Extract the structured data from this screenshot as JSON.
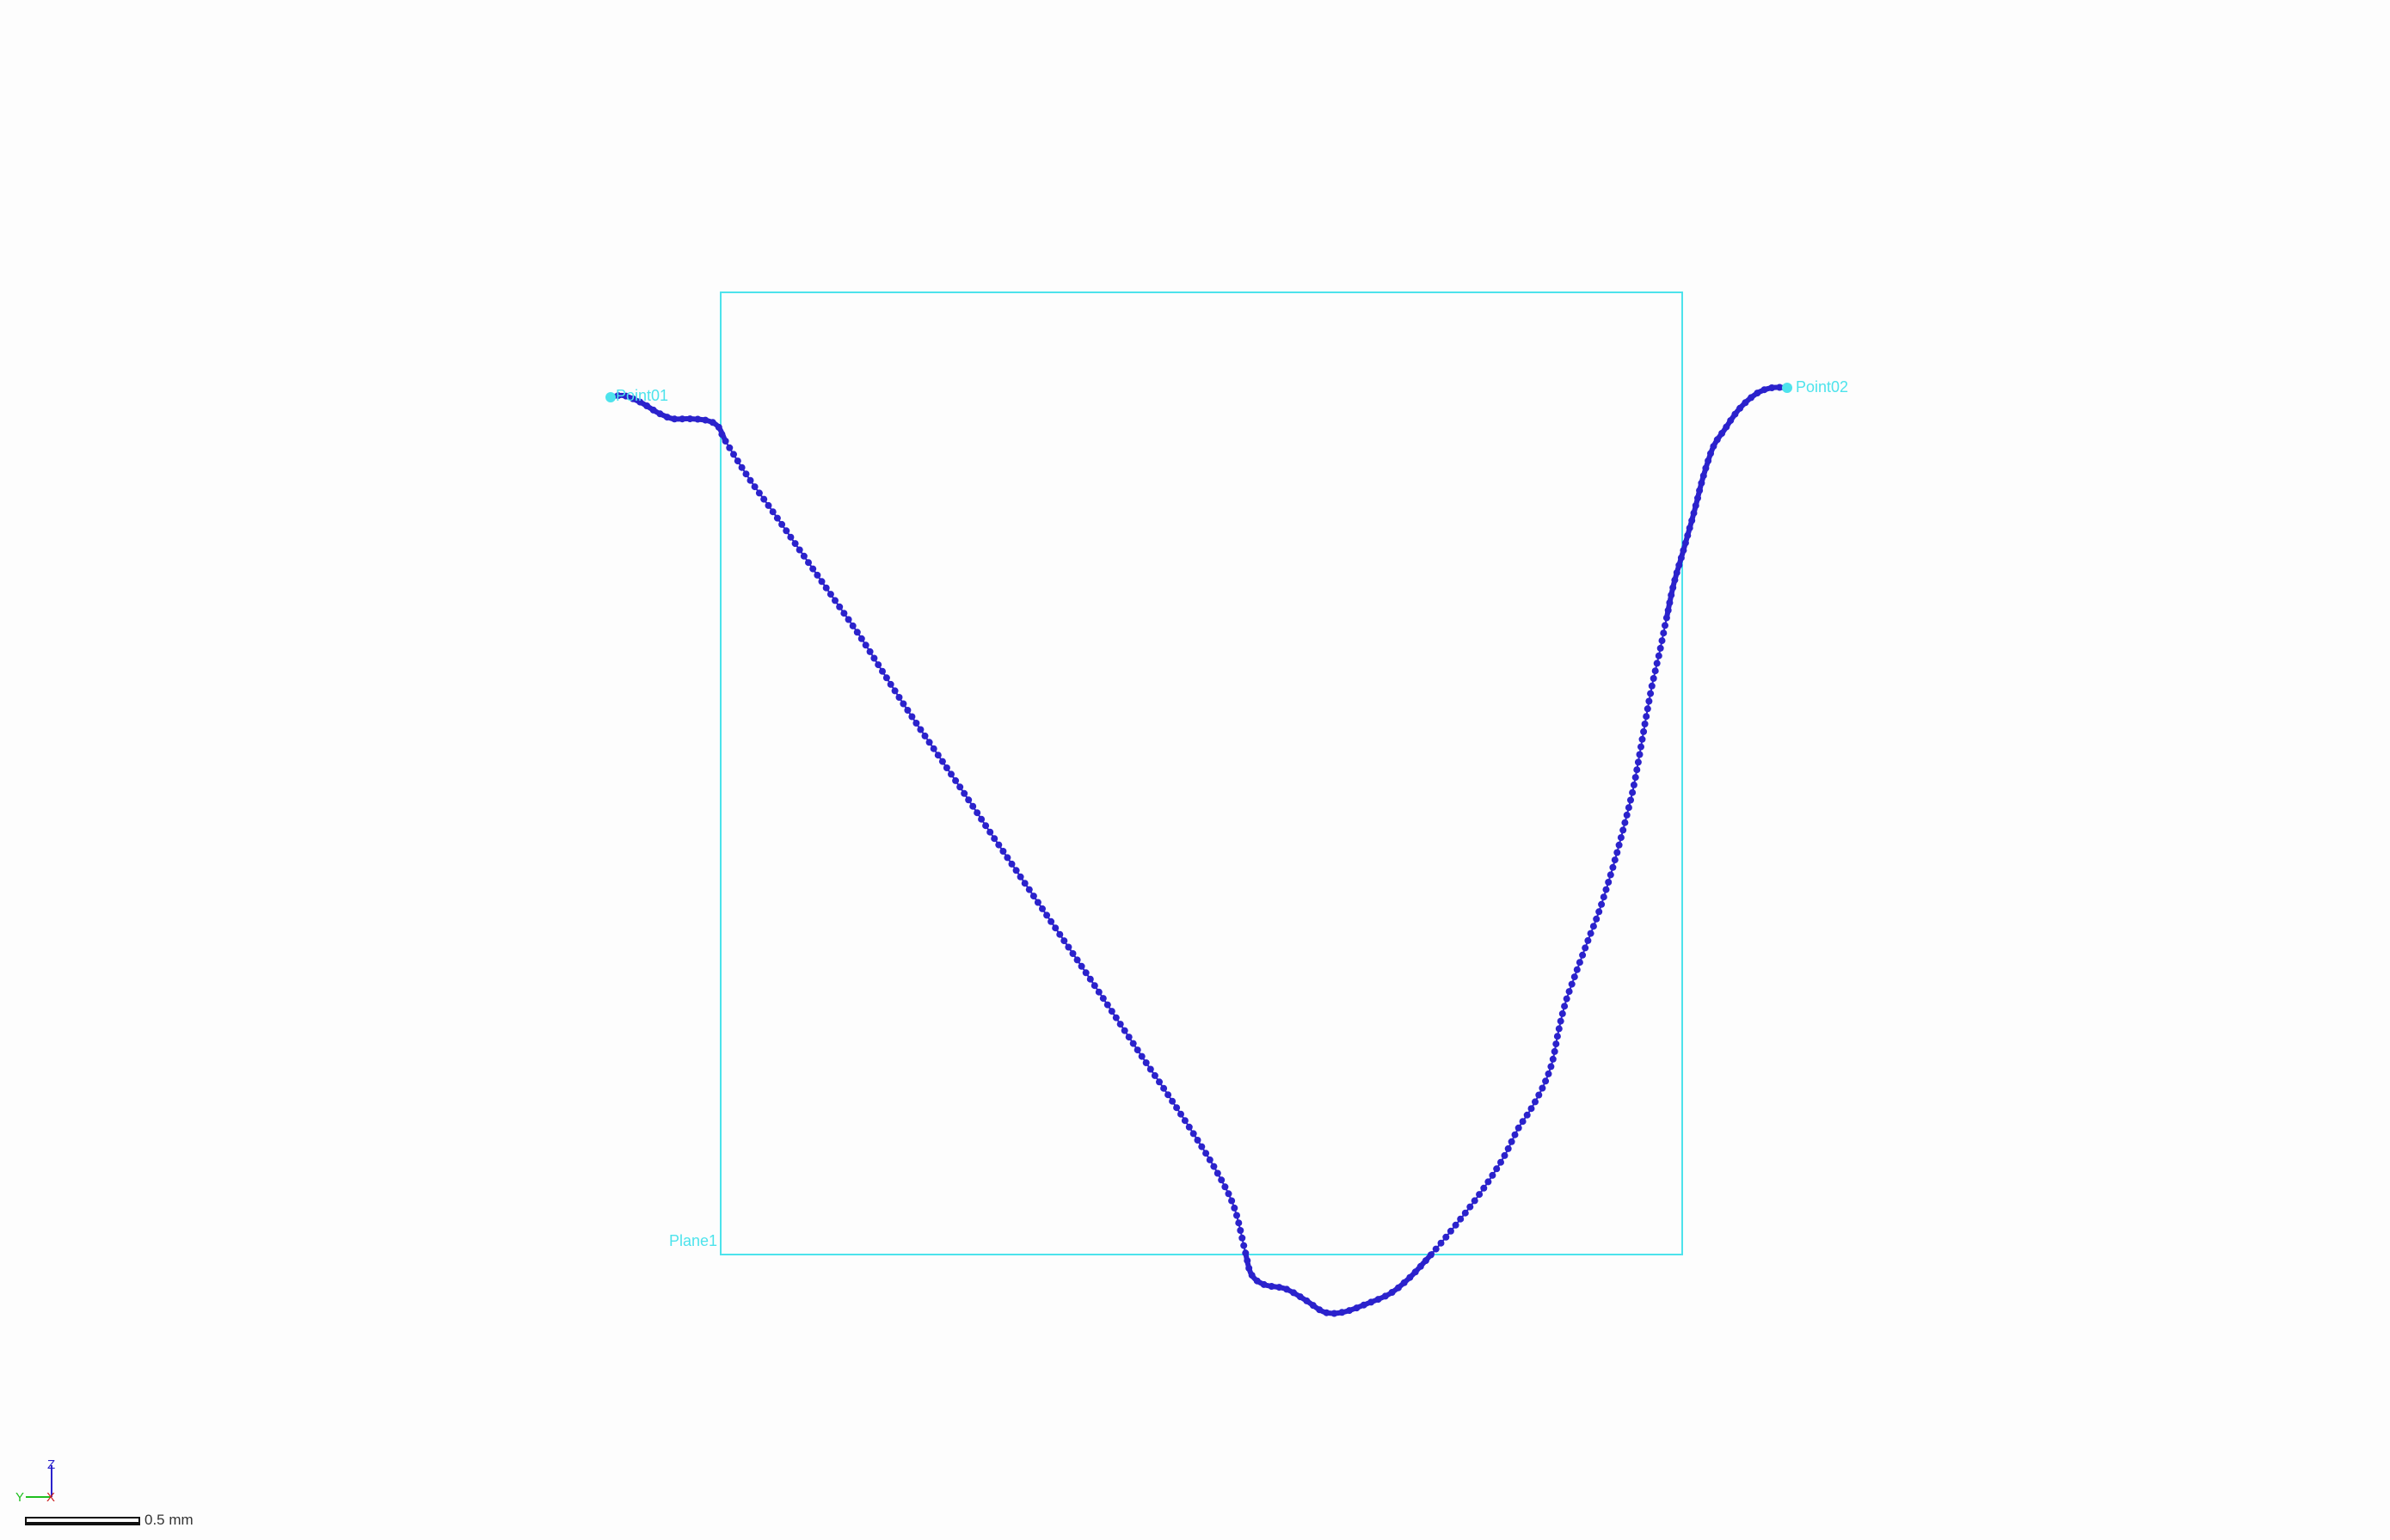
{
  "viewport": {
    "background": "#fdfdfd",
    "accent_color": "#4de3ec",
    "profile_color": "#2b22cc"
  },
  "labels": {
    "point1": "Point01",
    "point2": "Point02",
    "plane": "Plane1"
  },
  "axis_triad": {
    "z": "Z",
    "y": "Y",
    "x": "X"
  },
  "scale_bar": {
    "label": "0.5 mm"
  }
}
